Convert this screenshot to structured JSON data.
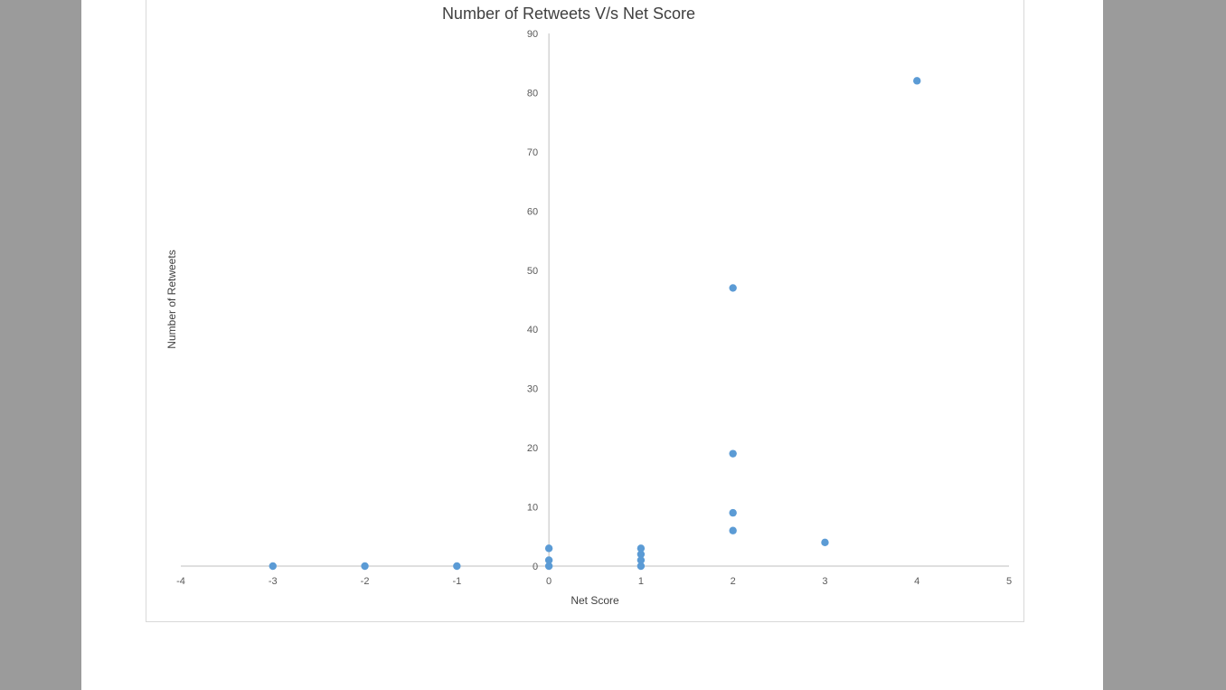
{
  "chart_data": {
    "type": "scatter",
    "title": "Number of Retweets V/s Net Score",
    "xlabel": "Net Score",
    "ylabel": "Number of Retweets",
    "xlim": [
      -4,
      5
    ],
    "ylim": [
      0,
      90
    ],
    "xticks": [
      "-4",
      "-3",
      "-2",
      "-1",
      "0",
      "1",
      "2",
      "3",
      "4",
      "5"
    ],
    "yticks": [
      "0",
      "10",
      "20",
      "30",
      "40",
      "50",
      "60",
      "70",
      "80",
      "90"
    ],
    "grid": false,
    "legend": "none",
    "marker_color": "#5b9bd5",
    "axis_color": "#bfbfbf",
    "points": [
      {
        "x": -3,
        "y": 0
      },
      {
        "x": -2,
        "y": 0
      },
      {
        "x": -1,
        "y": 0
      },
      {
        "x": 0,
        "y": 0
      },
      {
        "x": 0,
        "y": 1
      },
      {
        "x": 0,
        "y": 3
      },
      {
        "x": 1,
        "y": 0
      },
      {
        "x": 1,
        "y": 1
      },
      {
        "x": 1,
        "y": 2
      },
      {
        "x": 1,
        "y": 3
      },
      {
        "x": 2,
        "y": 6
      },
      {
        "x": 2,
        "y": 9
      },
      {
        "x": 2,
        "y": 19
      },
      {
        "x": 2,
        "y": 47
      },
      {
        "x": 3,
        "y": 4
      },
      {
        "x": 4,
        "y": 82
      }
    ]
  }
}
